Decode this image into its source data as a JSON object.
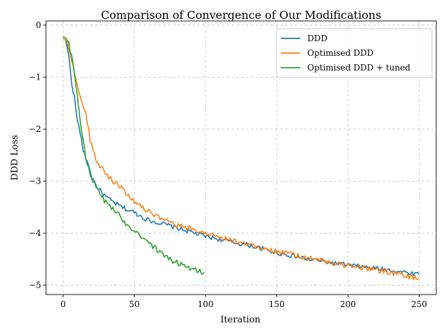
{
  "chart_data": {
    "type": "line",
    "title": "Comparison of Convergence of Our Modifications",
    "xlabel": "Iteration",
    "ylabel": "DDD Loss",
    "xlim": [
      -12,
      262
    ],
    "ylim": [
      -5.18,
      0.08
    ],
    "xticks": [
      0,
      50,
      100,
      150,
      200,
      250
    ],
    "yticks": [
      0,
      -1,
      -2,
      -3,
      -4,
      -5
    ],
    "xtick_labels": [
      "0",
      "50",
      "100",
      "150",
      "200",
      "250"
    ],
    "ytick_labels": [
      "0",
      "−1",
      "−2",
      "−3",
      "−4",
      "−5"
    ],
    "grid": true,
    "legend_position": "upper right",
    "series": [
      {
        "name": "DDD",
        "color": "#1f77b4",
        "anchors": [
          [
            0,
            -0.25
          ],
          [
            2,
            -0.3
          ],
          [
            4,
            -0.6
          ],
          [
            6,
            -1.1
          ],
          [
            8,
            -1.4
          ],
          [
            10,
            -1.85
          ],
          [
            12,
            -2.05
          ],
          [
            14,
            -2.4
          ],
          [
            17,
            -2.65
          ],
          [
            20,
            -2.95
          ],
          [
            25,
            -3.15
          ],
          [
            30,
            -3.3
          ],
          [
            35,
            -3.4
          ],
          [
            40,
            -3.48
          ],
          [
            45,
            -3.55
          ],
          [
            50,
            -3.6
          ],
          [
            55,
            -3.68
          ],
          [
            60,
            -3.75
          ],
          [
            70,
            -3.82
          ],
          [
            80,
            -3.9
          ],
          [
            90,
            -3.98
          ],
          [
            100,
            -4.06
          ],
          [
            110,
            -4.12
          ],
          [
            120,
            -4.18
          ],
          [
            130,
            -4.23
          ],
          [
            140,
            -4.3
          ],
          [
            150,
            -4.38
          ],
          [
            160,
            -4.43
          ],
          [
            170,
            -4.49
          ],
          [
            180,
            -4.53
          ],
          [
            190,
            -4.58
          ],
          [
            200,
            -4.61
          ],
          [
            210,
            -4.65
          ],
          [
            220,
            -4.68
          ],
          [
            230,
            -4.71
          ],
          [
            240,
            -4.75
          ],
          [
            250,
            -4.79
          ]
        ]
      },
      {
        "name": "Optimised DDD",
        "color": "#ff7f0e",
        "anchors": [
          [
            0,
            -0.25
          ],
          [
            3,
            -0.32
          ],
          [
            6,
            -0.65
          ],
          [
            9,
            -1.05
          ],
          [
            11,
            -1.3
          ],
          [
            13,
            -1.45
          ],
          [
            15,
            -1.6
          ],
          [
            17,
            -1.85
          ],
          [
            19,
            -2.2
          ],
          [
            21,
            -2.4
          ],
          [
            23,
            -2.55
          ],
          [
            26,
            -2.7
          ],
          [
            30,
            -2.85
          ],
          [
            35,
            -3.0
          ],
          [
            40,
            -3.1
          ],
          [
            45,
            -3.25
          ],
          [
            50,
            -3.38
          ],
          [
            55,
            -3.48
          ],
          [
            60,
            -3.58
          ],
          [
            65,
            -3.67
          ],
          [
            70,
            -3.75
          ],
          [
            80,
            -3.85
          ],
          [
            90,
            -3.92
          ],
          [
            100,
            -4.0
          ],
          [
            110,
            -4.07
          ],
          [
            120,
            -4.15
          ],
          [
            130,
            -4.21
          ],
          [
            140,
            -4.29
          ],
          [
            150,
            -4.35
          ],
          [
            160,
            -4.41
          ],
          [
            170,
            -4.47
          ],
          [
            180,
            -4.52
          ],
          [
            190,
            -4.58
          ],
          [
            200,
            -4.62
          ],
          [
            210,
            -4.66
          ],
          [
            220,
            -4.71
          ],
          [
            230,
            -4.76
          ],
          [
            240,
            -4.82
          ],
          [
            250,
            -4.88
          ]
        ]
      },
      {
        "name": "Optimised DDD + tuned",
        "color": "#2ca02c",
        "anchors": [
          [
            0,
            -0.22
          ],
          [
            2,
            -0.25
          ],
          [
            4,
            -0.35
          ],
          [
            6,
            -0.6
          ],
          [
            8,
            -0.95
          ],
          [
            10,
            -1.35
          ],
          [
            12,
            -1.85
          ],
          [
            14,
            -2.15
          ],
          [
            16,
            -2.55
          ],
          [
            18,
            -2.75
          ],
          [
            21,
            -3.0
          ],
          [
            24,
            -3.15
          ],
          [
            27,
            -3.3
          ],
          [
            30,
            -3.4
          ],
          [
            34,
            -3.5
          ],
          [
            38,
            -3.62
          ],
          [
            42,
            -3.75
          ],
          [
            46,
            -3.86
          ],
          [
            50,
            -3.94
          ],
          [
            55,
            -4.05
          ],
          [
            60,
            -4.18
          ],
          [
            65,
            -4.3
          ],
          [
            70,
            -4.42
          ],
          [
            75,
            -4.5
          ],
          [
            80,
            -4.57
          ],
          [
            85,
            -4.62
          ],
          [
            90,
            -4.67
          ],
          [
            95,
            -4.72
          ],
          [
            99,
            -4.75
          ]
        ]
      }
    ]
  }
}
